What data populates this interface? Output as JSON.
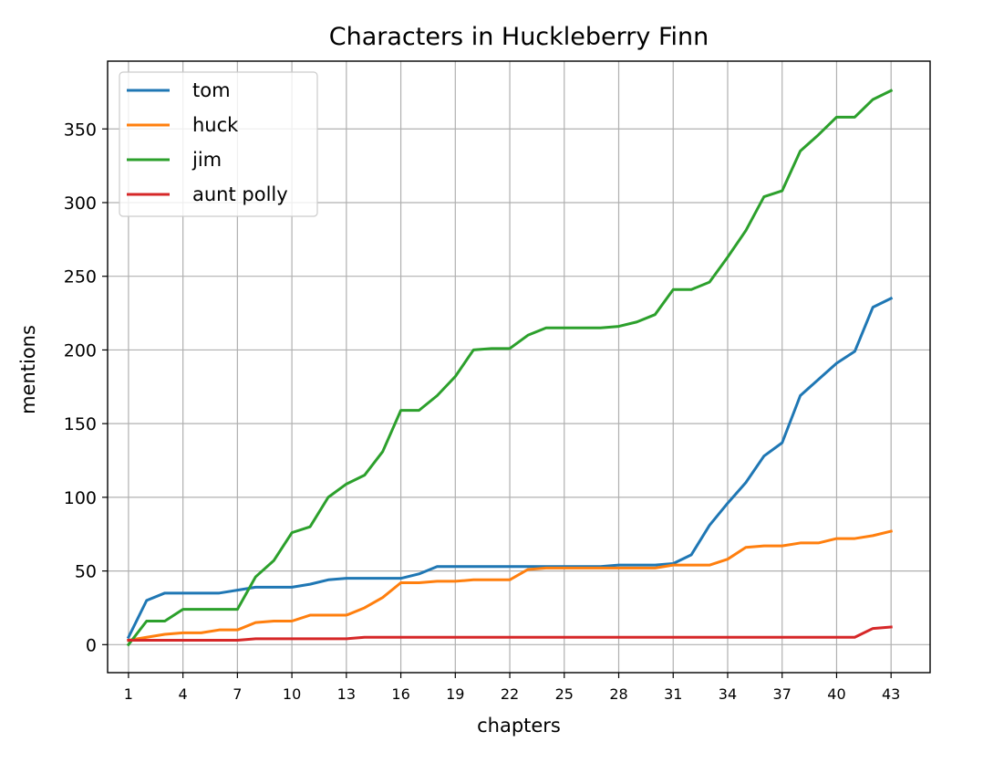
{
  "chart_data": {
    "type": "line",
    "title": "Characters in Huckleberry Finn",
    "xlabel": "chapters",
    "ylabel": "mentions",
    "xlim": [
      -0.15,
      45.15
    ],
    "ylim": [
      -19,
      396
    ],
    "grid": true,
    "legend_position": "top-left",
    "x_ticks": [
      1,
      4,
      7,
      10,
      13,
      16,
      19,
      22,
      25,
      28,
      31,
      34,
      37,
      40,
      43
    ],
    "y_ticks": [
      0,
      50,
      100,
      150,
      200,
      250,
      300,
      350
    ],
    "x": [
      1,
      2,
      3,
      4,
      5,
      6,
      7,
      8,
      9,
      10,
      11,
      12,
      13,
      14,
      15,
      16,
      17,
      18,
      19,
      20,
      21,
      22,
      23,
      24,
      25,
      26,
      27,
      28,
      29,
      30,
      31,
      32,
      33,
      34,
      35,
      36,
      37,
      38,
      39,
      40,
      41,
      42,
      43
    ],
    "series": [
      {
        "name": "tom",
        "color": "#1f77b4",
        "values": [
          5,
          30,
          35,
          35,
          35,
          35,
          37,
          39,
          39,
          39,
          41,
          44,
          45,
          45,
          45,
          45,
          48,
          53,
          53,
          53,
          53,
          53,
          53,
          53,
          53,
          53,
          53,
          54,
          54,
          54,
          55,
          61,
          81,
          96,
          110,
          128,
          137,
          169,
          180,
          191,
          199,
          229,
          235
        ]
      },
      {
        "name": "huck",
        "color": "#ff7f0e",
        "values": [
          3,
          5,
          7,
          8,
          8,
          10,
          10,
          15,
          16,
          16,
          20,
          20,
          20,
          25,
          32,
          42,
          42,
          43,
          43,
          44,
          44,
          44,
          51,
          52,
          52,
          52,
          52,
          52,
          52,
          52,
          54,
          54,
          54,
          58,
          66,
          67,
          67,
          69,
          69,
          72,
          72,
          74,
          77
        ]
      },
      {
        "name": "jim",
        "color": "#2ca02c",
        "values": [
          0,
          16,
          16,
          24,
          24,
          24,
          24,
          46,
          57,
          76,
          80,
          100,
          109,
          115,
          131,
          159,
          159,
          169,
          182,
          200,
          201,
          201,
          210,
          215,
          215,
          215,
          215,
          216,
          219,
          224,
          241,
          241,
          246,
          263,
          281,
          304,
          308,
          335,
          346,
          358,
          358,
          370,
          376
        ]
      },
      {
        "name": "aunt polly",
        "color": "#d62728",
        "values": [
          3,
          3,
          3,
          3,
          3,
          3,
          3,
          4,
          4,
          4,
          4,
          4,
          4,
          5,
          5,
          5,
          5,
          5,
          5,
          5,
          5,
          5,
          5,
          5,
          5,
          5,
          5,
          5,
          5,
          5,
          5,
          5,
          5,
          5,
          5,
          5,
          5,
          5,
          5,
          5,
          5,
          11,
          12
        ]
      }
    ]
  }
}
